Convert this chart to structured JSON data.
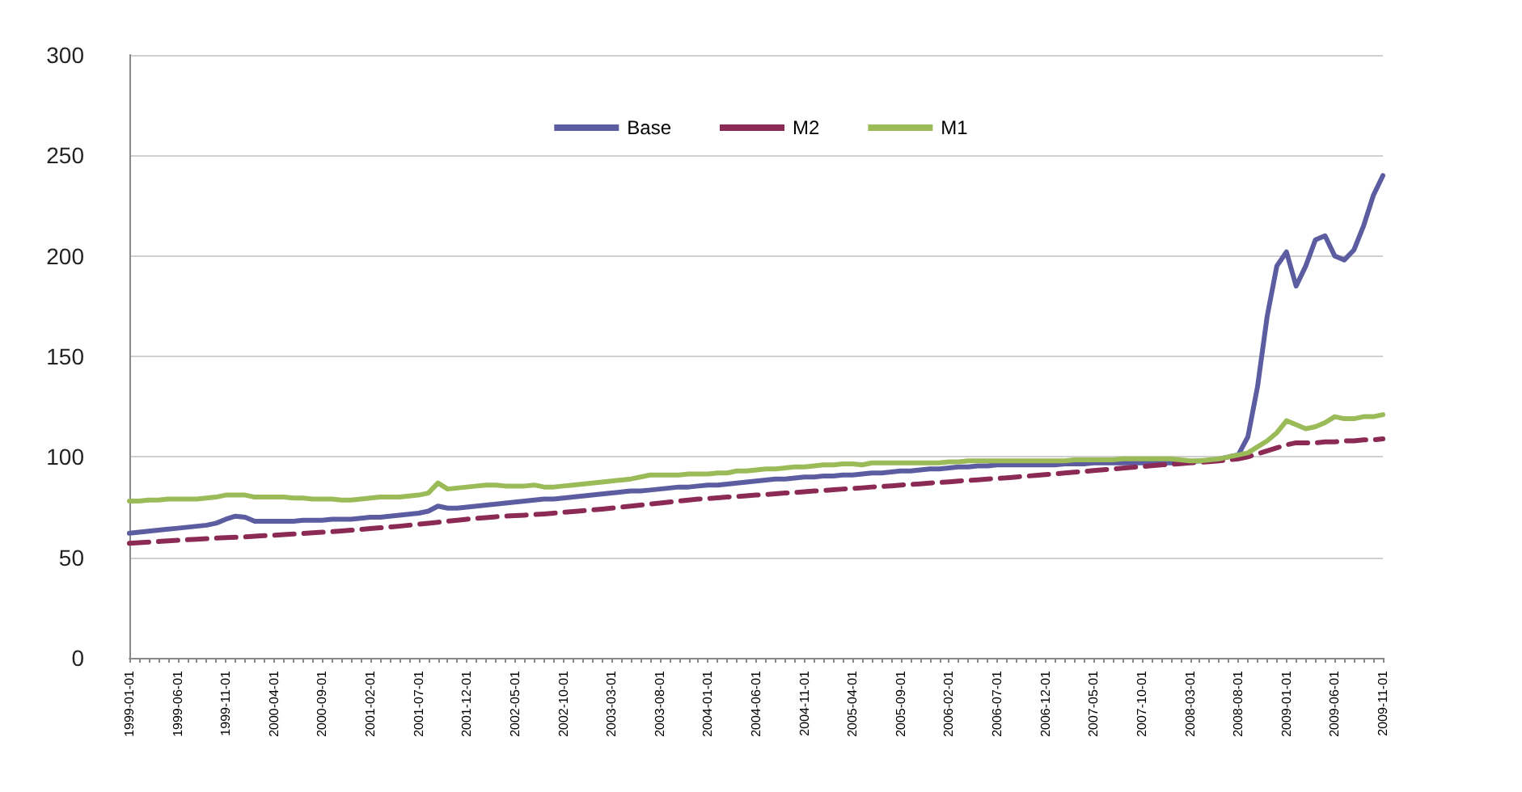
{
  "chart_data": {
    "type": "line",
    "categories": [
      "1999-01-01",
      null,
      null,
      null,
      null,
      "1999-06-01",
      null,
      null,
      null,
      null,
      "1999-11-01",
      null,
      null,
      null,
      null,
      "2000-04-01",
      null,
      null,
      null,
      null,
      "2000-09-01",
      null,
      null,
      null,
      null,
      "2001-02-01",
      null,
      null,
      null,
      null,
      "2001-07-01",
      null,
      null,
      null,
      null,
      "2001-12-01",
      null,
      null,
      null,
      null,
      "2002-05-01",
      null,
      null,
      null,
      null,
      "2002-10-01",
      null,
      null,
      null,
      null,
      "2003-03-01",
      null,
      null,
      null,
      null,
      "2003-08-01",
      null,
      null,
      null,
      null,
      "2004-01-01",
      null,
      null,
      null,
      null,
      "2004-06-01",
      null,
      null,
      null,
      null,
      "2004-11-01",
      null,
      null,
      null,
      null,
      "2005-04-01",
      null,
      null,
      null,
      null,
      "2005-09-01",
      null,
      null,
      null,
      null,
      "2006-02-01",
      null,
      null,
      null,
      null,
      "2006-07-01",
      null,
      null,
      null,
      null,
      "2006-12-01",
      null,
      null,
      null,
      null,
      "2007-05-01",
      null,
      null,
      null,
      null,
      "2007-10-01",
      null,
      null,
      null,
      null,
      "2008-03-01",
      null,
      null,
      null,
      null,
      "2008-08-01",
      null,
      null,
      null,
      null,
      "2009-01-01",
      null,
      null,
      null,
      null,
      "2009-06-01",
      null,
      null,
      null,
      null,
      "2009-11-01"
    ],
    "series": [
      {
        "name": "Base",
        "color": "#5c5ca0",
        "line_style": "solid",
        "values": [
          62,
          62.5,
          63,
          63.5,
          64,
          64.5,
          65,
          65.5,
          66,
          67,
          69,
          70.5,
          70,
          68,
          68,
          68,
          68,
          68,
          68.5,
          68.5,
          68.5,
          69,
          69,
          69,
          69.5,
          70,
          70,
          70.5,
          71,
          71.5,
          72,
          73,
          75.5,
          74.5,
          74.5,
          75,
          75.5,
          76,
          76.5,
          77,
          77.5,
          78,
          78.5,
          79,
          79,
          79.5,
          80,
          80.5,
          81,
          81.5,
          82,
          82.5,
          83,
          83,
          83.5,
          84,
          84.5,
          85,
          85,
          85.5,
          86,
          86,
          86.5,
          87,
          87.5,
          88,
          88.5,
          89,
          89,
          89.5,
          90,
          90,
          90.5,
          90.5,
          91,
          91,
          91.5,
          92,
          92,
          92.5,
          93,
          93,
          93.5,
          94,
          94,
          94.5,
          95,
          95,
          95.5,
          95.5,
          96,
          96,
          96,
          96,
          96,
          96,
          96,
          96.5,
          96.5,
          96.5,
          97,
          97,
          97,
          97,
          97,
          97,
          97,
          97,
          97,
          97.5,
          97.5,
          98,
          98,
          99,
          100,
          101,
          110,
          135,
          170,
          195,
          202,
          185,
          195,
          208,
          210,
          200,
          198,
          203,
          215,
          230,
          240
        ]
      },
      {
        "name": "M2",
        "color": "#8b2a55",
        "line_style": "dashed",
        "values": [
          57,
          57.3,
          57.6,
          57.9,
          58.2,
          58.5,
          58.8,
          59,
          59.3,
          59.6,
          59.8,
          60,
          60.2,
          60.5,
          60.8,
          61,
          61.3,
          61.6,
          61.9,
          62.2,
          62.5,
          62.8,
          63.1,
          63.5,
          63.9,
          64.3,
          64.7,
          65.1,
          65.5,
          66,
          66.5,
          67,
          67.5,
          68,
          68.5,
          69,
          69.4,
          69.8,
          70.2,
          70.5,
          70.8,
          71,
          71.3,
          71.6,
          72,
          72.4,
          72.8,
          73.2,
          73.6,
          74,
          74.5,
          75,
          75.5,
          76,
          76.5,
          77,
          77.5,
          78,
          78.5,
          79,
          79.3,
          79.6,
          80,
          80.3,
          80.6,
          81,
          81.3,
          81.6,
          82,
          82.3,
          82.6,
          83,
          83.3,
          83.6,
          84,
          84.3,
          84.6,
          85,
          85.3,
          85.6,
          86,
          86.3,
          86.6,
          87,
          87.3,
          87.6,
          88,
          88.3,
          88.6,
          89,
          89.3,
          89.6,
          90,
          90.4,
          90.8,
          91.2,
          91.6,
          92,
          92.4,
          92.8,
          93.2,
          93.6,
          94,
          94.4,
          94.8,
          95.2,
          95.6,
          96,
          96.3,
          96.6,
          97,
          97.3,
          97.6,
          98,
          98.5,
          99,
          100,
          101.5,
          103,
          104.5,
          106,
          107,
          107,
          107,
          107.5,
          107.5,
          108,
          108,
          108.5,
          108.5,
          109
        ]
      },
      {
        "name": "M1",
        "color": "#9bbb59",
        "line_style": "solid",
        "values": [
          78,
          78,
          78.5,
          78.5,
          79,
          79,
          79,
          79,
          79.5,
          80,
          81,
          81,
          81,
          80,
          80,
          80,
          80,
          79.5,
          79.5,
          79,
          79,
          79,
          78.5,
          78.5,
          79,
          79.5,
          80,
          80,
          80,
          80.5,
          81,
          82,
          87,
          84,
          84.5,
          85,
          85.5,
          86,
          86,
          85.5,
          85.5,
          85.5,
          86,
          85,
          85,
          85.5,
          86,
          86.5,
          87,
          87.5,
          88,
          88.5,
          89,
          90,
          91,
          91,
          91,
          91,
          91.5,
          91.5,
          91.5,
          92,
          92,
          93,
          93,
          93.5,
          94,
          94,
          94.5,
          95,
          95,
          95.5,
          96,
          96,
          96.5,
          96.5,
          96,
          97,
          97,
          97,
          97,
          97,
          97,
          97,
          97,
          97.5,
          97.5,
          98,
          98,
          98,
          98,
          98,
          98,
          98,
          98,
          98,
          98,
          98,
          98.5,
          98.5,
          98.5,
          98.5,
          98.5,
          99,
          99,
          99,
          99,
          99,
          99,
          98.5,
          98,
          98,
          98.5,
          99,
          100,
          101,
          102,
          105,
          108,
          112,
          118,
          116,
          114,
          115,
          117,
          120,
          119,
          119,
          120,
          120,
          121
        ]
      }
    ],
    "ylim": [
      0,
      300
    ],
    "yticks": [
      0,
      50,
      100,
      150,
      200,
      250,
      300
    ],
    "grid": "y",
    "legend": "top",
    "marker": "none"
  }
}
